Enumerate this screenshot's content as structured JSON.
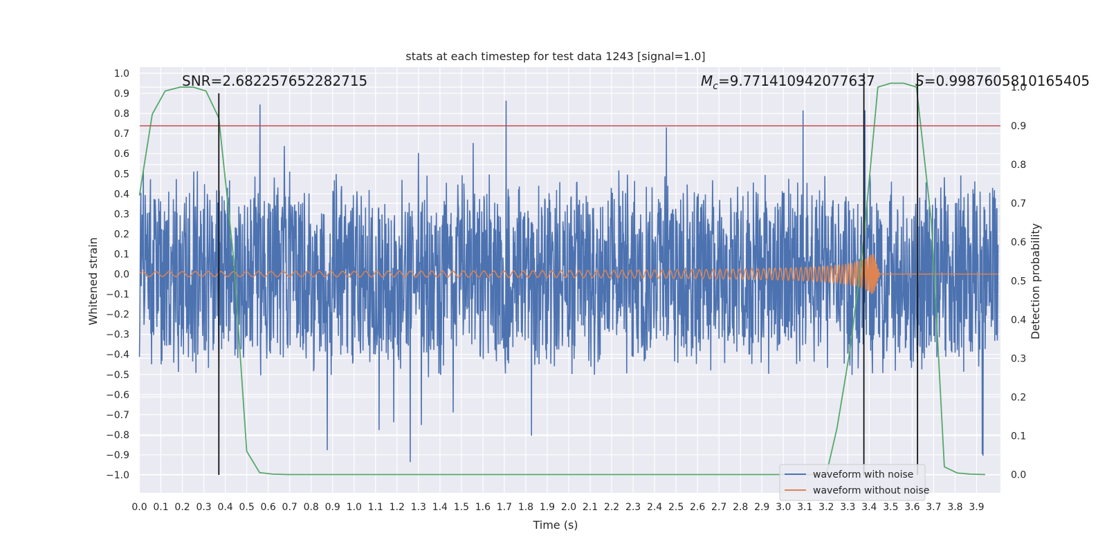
{
  "chart_data": {
    "type": "line",
    "title": "stats at each timestep for test data 1243 [signal=1.0]",
    "xlabel": "Time (s)",
    "ylabel": "Whitened strain",
    "y2label": "Detection probability",
    "xlim": [
      0.0,
      4.0
    ],
    "ylim": [
      -1.1,
      1.05
    ],
    "y2lim": [
      -0.05,
      1.02
    ],
    "x_ticks": [
      "0.0",
      "0.1",
      "0.2",
      "0.3",
      "0.4",
      "0.5",
      "0.6",
      "0.7",
      "0.8",
      "0.9",
      "1.0",
      "1.1",
      "1.2",
      "1.3",
      "1.4",
      "1.5",
      "1.6",
      "1.7",
      "1.8",
      "1.9",
      "2.0",
      "2.1",
      "2.2",
      "2.3",
      "2.4",
      "2.5",
      "2.6",
      "2.7",
      "2.8",
      "2.9",
      "3.0",
      "3.1",
      "3.2",
      "3.3",
      "3.4",
      "3.5",
      "3.6",
      "3.7",
      "3.8",
      "3.9"
    ],
    "y_ticks": [
      "1.0",
      "0.9",
      "0.8",
      "0.7",
      "0.6",
      "0.5",
      "0.4",
      "0.3",
      "0.2",
      "0.1",
      "0.0",
      "−0.1",
      "−0.2",
      "−0.3",
      "−0.4",
      "−0.5",
      "−0.6",
      "−0.7",
      "−0.8",
      "−0.9",
      "−1.0"
    ],
    "y2_ticks": [
      "1.0",
      "0.9",
      "0.8",
      "0.7",
      "0.6",
      "0.5",
      "0.4",
      "0.3",
      "0.2",
      "0.1",
      "0.0"
    ],
    "grid": true,
    "legend_position": "bottom-right",
    "series": [
      {
        "name": "waveform with noise",
        "color": "#4c72b0",
        "axis": "left",
        "description_values": {
          "amplitude_typical": 0.35,
          "amplitude_peak": 0.93,
          "trough_min": -1.0
        }
      },
      {
        "name": "waveform without noise",
        "color": "#dd8452",
        "axis": "left",
        "chirp_start_amp": 0.012,
        "chirp_peak_time": 3.42,
        "chirp_peak_amp": 0.1
      },
      {
        "name": "",
        "color": "#55a868",
        "axis": "right",
        "x": [
          0.0,
          0.06,
          0.12,
          0.19,
          0.25,
          0.31,
          0.37,
          0.44,
          0.5,
          0.56,
          0.62,
          0.69,
          1.5,
          2.5,
          3.0,
          3.2,
          3.25,
          3.31,
          3.37,
          3.44,
          3.5,
          3.56,
          3.62,
          3.69,
          3.75,
          3.81,
          3.87,
          3.94
        ],
        "values": [
          0.72,
          0.93,
          0.99,
          1.0,
          1.0,
          0.99,
          0.92,
          0.55,
          0.06,
          0.005,
          0.001,
          0.0,
          0.0,
          0.0,
          0.0,
          0.0,
          0.12,
          0.32,
          0.58,
          1.0,
          1.01,
          1.01,
          1.0,
          0.65,
          0.02,
          0.004,
          0.001,
          0.0
        ]
      }
    ],
    "threshold": {
      "value": 0.9,
      "axis": "right",
      "color": "#c44e52"
    },
    "markers": [
      {
        "x": 0.37,
        "ymin": -1.0,
        "ymax": 0.9
      },
      {
        "x": 3.375,
        "ymin": -1.0,
        "ymax": 1.0
      },
      {
        "x": 3.625,
        "ymin": -1.0,
        "ymax": 1.0
      }
    ],
    "annotations": {
      "snr": {
        "prefix": "SNR=",
        "value": "2.682257652282715",
        "x": 0.2
      },
      "mc": {
        "symbol": "M",
        "sub": "c",
        "value": "=9.771410942077637",
        "x": 2.6
      },
      "s": {
        "symbol": "S",
        "value": "=0.9987605810165405",
        "x": 3.6
      }
    }
  }
}
